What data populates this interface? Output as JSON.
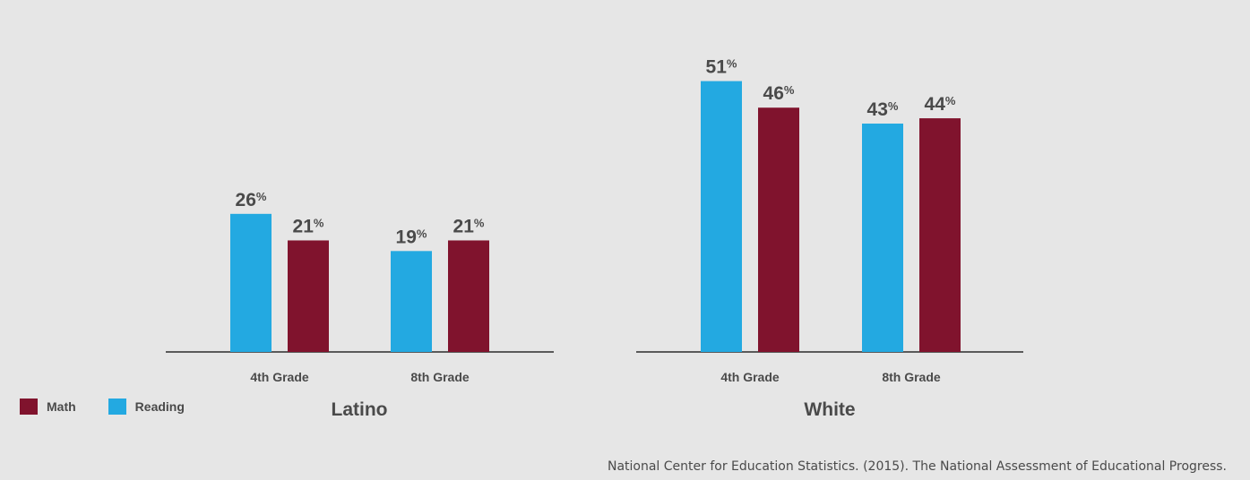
{
  "chart_data": [
    {
      "type": "bar",
      "title": "Latino",
      "categories": [
        "4th Grade",
        "8th Grade"
      ],
      "series": [
        {
          "name": "Reading",
          "values": [
            26,
            19
          ],
          "color": "#23a9e1"
        },
        {
          "name": "Math",
          "values": [
            21,
            21
          ],
          "color": "#80132d"
        }
      ],
      "value_suffix": "%",
      "ylim": [
        0,
        60
      ],
      "grid": false
    },
    {
      "type": "bar",
      "title": "White",
      "categories": [
        "4th Grade",
        "8th Grade"
      ],
      "series": [
        {
          "name": "Reading",
          "values": [
            51,
            43
          ],
          "color": "#23a9e1"
        },
        {
          "name": "Math",
          "values": [
            46,
            44
          ],
          "color": "#80132d"
        }
      ],
      "value_suffix": "%",
      "ylim": [
        0,
        60
      ],
      "grid": false
    }
  ],
  "legend": {
    "placement": "bottom-left",
    "items": [
      {
        "label": "Math",
        "color": "#80132d"
      },
      {
        "label": "Reading",
        "color": "#23a9e1"
      }
    ]
  },
  "source": "National Center for Education Statistics. (2015). The National Assessment of Educational Progress."
}
